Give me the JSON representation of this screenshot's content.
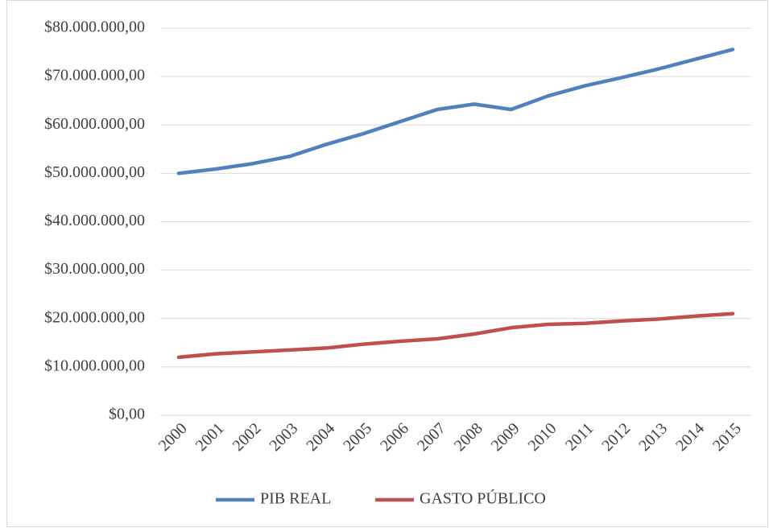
{
  "chart_data": {
    "type": "line",
    "categories": [
      "2000",
      "2001",
      "2002",
      "2003",
      "2004",
      "2005",
      "2006",
      "2007",
      "2008",
      "2009",
      "2010",
      "2011",
      "2012",
      "2013",
      "2014",
      "2015"
    ],
    "series": [
      {
        "name": "PIB REAL",
        "color": "#4f81bd",
        "values": [
          50000000,
          50900000,
          52000000,
          53500000,
          56000000,
          58200000,
          60700000,
          63200000,
          64300000,
          63200000,
          66000000,
          68100000,
          69800000,
          71600000,
          73600000,
          75600000
        ]
      },
      {
        "name": "GASTO PÚBLICO",
        "color": "#c0504d",
        "values": [
          12000000,
          12700000,
          13100000,
          13500000,
          13900000,
          14700000,
          15300000,
          15800000,
          16800000,
          18100000,
          18800000,
          19000000,
          19500000,
          19900000,
          20500000,
          21000000
        ]
      }
    ],
    "ylim": [
      0,
      80000000
    ],
    "yticks": [
      {
        "value": 0,
        "label": "$0,00"
      },
      {
        "value": 10000000,
        "label": "$10.000.000,00"
      },
      {
        "value": 20000000,
        "label": "$20.000.000,00"
      },
      {
        "value": 30000000,
        "label": "$30.000.000,00"
      },
      {
        "value": 40000000,
        "label": "$40.000.000,00"
      },
      {
        "value": 50000000,
        "label": "$50.000.000,00"
      },
      {
        "value": 60000000,
        "label": "$60.000.000,00"
      },
      {
        "value": 70000000,
        "label": "$70.000.000,00"
      },
      {
        "value": 80000000,
        "label": "$80.000.000,00"
      }
    ],
    "grid": true,
    "legend": "bottom"
  }
}
